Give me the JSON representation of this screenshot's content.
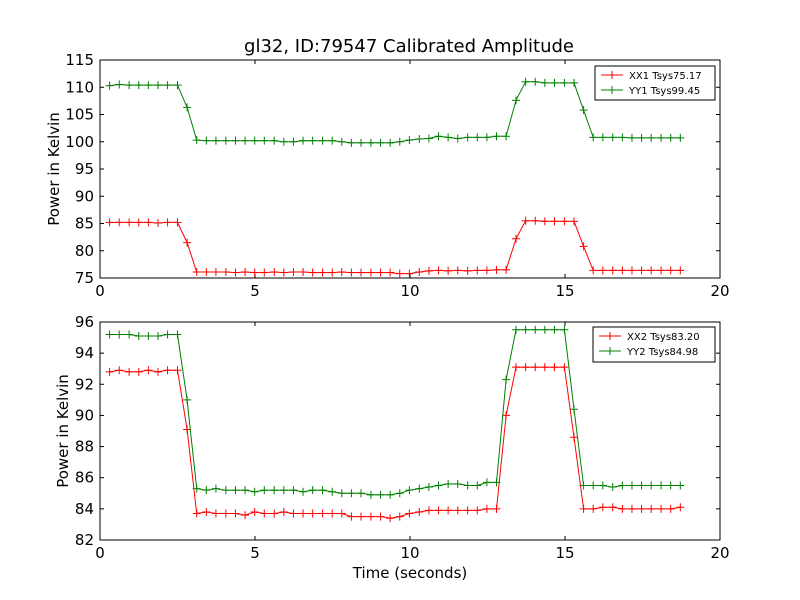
{
  "colors": {
    "xx": "#ff0000",
    "yy": "#008000",
    "frame": "#000000",
    "background": "#ffffff"
  },
  "chart_data": [
    {
      "type": "line",
      "title": "gl32, ID:79547 Calibrated Amplitude",
      "xlabel": "",
      "ylabel": "Power in Kelvin",
      "xlim": [
        0,
        20
      ],
      "ylim": [
        75,
        115
      ],
      "xticks": [
        "0",
        "5",
        "10",
        "15",
        "20"
      ],
      "yticks": [
        "75",
        "80",
        "85",
        "90",
        "95",
        "100",
        "105",
        "110",
        "115"
      ],
      "legend_position": "top-right",
      "grid": false,
      "x": [
        0.31,
        0.62,
        0.94,
        1.25,
        1.56,
        1.87,
        2.18,
        2.5,
        2.81,
        3.12,
        3.43,
        3.74,
        4.06,
        4.37,
        4.68,
        4.99,
        5.3,
        5.62,
        5.93,
        6.24,
        6.55,
        6.86,
        7.18,
        7.49,
        7.8,
        8.11,
        8.42,
        8.74,
        9.05,
        9.36,
        9.67,
        9.98,
        10.3,
        10.61,
        10.92,
        11.23,
        11.54,
        11.86,
        12.17,
        12.48,
        12.79,
        13.1,
        13.42,
        13.73,
        14.04,
        14.35,
        14.66,
        14.98,
        15.29,
        15.6,
        15.91,
        16.22,
        16.54,
        16.85,
        17.16,
        17.47,
        17.78,
        18.1,
        18.41,
        18.72
      ],
      "series": [
        {
          "name": "XX1 Tsys75.17",
          "color": "#ff0000",
          "values": [
            85.2,
            85.2,
            85.2,
            85.2,
            85.2,
            85.1,
            85.2,
            85.2,
            81.5,
            76.1,
            76.1,
            76.1,
            76.1,
            76.0,
            76.1,
            76.0,
            76.0,
            76.1,
            76.0,
            76.1,
            76.1,
            76.0,
            76.0,
            76.0,
            76.1,
            76.0,
            76.0,
            76.0,
            76.0,
            76.0,
            75.8,
            75.8,
            76.1,
            76.3,
            76.4,
            76.3,
            76.4,
            76.3,
            76.4,
            76.4,
            76.5,
            76.5,
            82.2,
            85.5,
            85.5,
            85.4,
            85.4,
            85.4,
            85.4,
            80.8,
            76.4,
            76.4,
            76.4,
            76.4,
            76.4,
            76.4,
            76.4,
            76.4,
            76.4,
            76.4
          ]
        },
        {
          "name": "YY1 Tsys99.45",
          "color": "#008000",
          "values": [
            110.3,
            110.5,
            110.4,
            110.4,
            110.4,
            110.4,
            110.4,
            110.4,
            106.3,
            100.3,
            100.2,
            100.2,
            100.2,
            100.2,
            100.2,
            100.2,
            100.2,
            100.2,
            100.0,
            100.0,
            100.2,
            100.2,
            100.2,
            100.2,
            100.0,
            99.8,
            99.8,
            99.8,
            99.8,
            99.8,
            100.0,
            100.3,
            100.5,
            100.6,
            101.0,
            100.8,
            100.6,
            100.8,
            100.8,
            100.8,
            101.0,
            101.0,
            107.6,
            111.0,
            111.0,
            110.8,
            110.8,
            110.8,
            110.8,
            105.8,
            100.8,
            100.8,
            100.8,
            100.8,
            100.7,
            100.7,
            100.7,
            100.7,
            100.7,
            100.7
          ]
        }
      ]
    },
    {
      "type": "line",
      "title": "",
      "xlabel": "Time (seconds)",
      "ylabel": "Power in Kelvin",
      "xlim": [
        0,
        20
      ],
      "ylim": [
        82,
        96
      ],
      "xticks": [
        "0",
        "5",
        "10",
        "15",
        "20"
      ],
      "yticks": [
        "82",
        "84",
        "86",
        "88",
        "90",
        "92",
        "94",
        "96"
      ],
      "legend_position": "top-right",
      "grid": false,
      "x": [
        0.31,
        0.62,
        0.94,
        1.25,
        1.56,
        1.87,
        2.18,
        2.5,
        2.81,
        3.12,
        3.43,
        3.74,
        4.06,
        4.37,
        4.68,
        4.99,
        5.3,
        5.62,
        5.93,
        6.24,
        6.55,
        6.86,
        7.18,
        7.49,
        7.8,
        8.11,
        8.42,
        8.74,
        9.05,
        9.36,
        9.67,
        9.98,
        10.3,
        10.61,
        10.92,
        11.23,
        11.54,
        11.86,
        12.17,
        12.48,
        12.79,
        13.1,
        13.42,
        13.73,
        14.04,
        14.35,
        14.66,
        14.98,
        15.29,
        15.6,
        15.91,
        16.22,
        16.54,
        16.85,
        17.16,
        17.47,
        17.78,
        18.1,
        18.41,
        18.72
      ],
      "series": [
        {
          "name": "XX2 Tsys83.20",
          "color": "#ff0000",
          "values": [
            92.8,
            92.9,
            92.8,
            92.8,
            92.9,
            92.8,
            92.9,
            92.9,
            89.1,
            83.7,
            83.8,
            83.7,
            83.7,
            83.7,
            83.6,
            83.8,
            83.7,
            83.7,
            83.8,
            83.7,
            83.7,
            83.7,
            83.7,
            83.7,
            83.7,
            83.5,
            83.5,
            83.5,
            83.5,
            83.4,
            83.5,
            83.7,
            83.8,
            83.9,
            83.9,
            83.9,
            83.9,
            83.9,
            83.9,
            84.0,
            84.0,
            90.0,
            93.1,
            93.1,
            93.1,
            93.1,
            93.1,
            93.1,
            88.6,
            84.0,
            84.0,
            84.1,
            84.1,
            84.0,
            84.0,
            84.0,
            84.0,
            84.0,
            84.0,
            84.1
          ]
        },
        {
          "name": "YY2 Tsys84.98",
          "color": "#008000",
          "values": [
            95.2,
            95.2,
            95.2,
            95.1,
            95.1,
            95.1,
            95.2,
            95.2,
            91.0,
            85.3,
            85.2,
            85.3,
            85.2,
            85.2,
            85.2,
            85.1,
            85.2,
            85.2,
            85.2,
            85.2,
            85.1,
            85.2,
            85.2,
            85.1,
            85.0,
            85.0,
            85.0,
            84.9,
            84.9,
            84.9,
            85.0,
            85.2,
            85.3,
            85.4,
            85.5,
            85.6,
            85.6,
            85.5,
            85.5,
            85.7,
            85.7,
            92.3,
            95.5,
            95.5,
            95.5,
            95.5,
            95.5,
            95.5,
            90.4,
            85.5,
            85.5,
            85.5,
            85.4,
            85.5,
            85.5,
            85.5,
            85.5,
            85.5,
            85.5,
            85.5
          ]
        }
      ]
    }
  ]
}
